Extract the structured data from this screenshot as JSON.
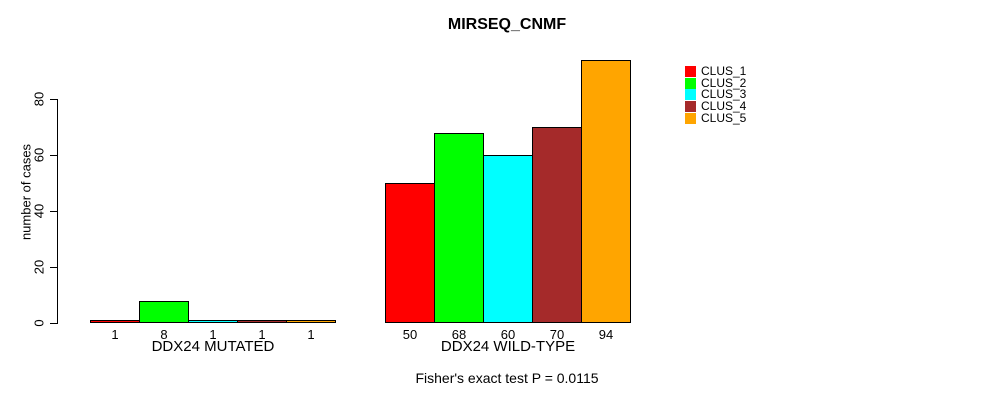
{
  "chart_data": {
    "type": "bar",
    "title": "MIRSEQ_CNMF",
    "ylabel": "number of cases",
    "xlabel": "",
    "yticks": [
      0,
      20,
      40,
      60,
      80
    ],
    "ylim": [
      0,
      94
    ],
    "grid": false,
    "legend_position": "right",
    "bar_value_labels_shown": true,
    "categories": [
      "DDX24 MUTATED",
      "DDX24 WILD-TYPE"
    ],
    "series": [
      {
        "name": "CLUS_1",
        "color": "#FF0000",
        "values": [
          1,
          50
        ]
      },
      {
        "name": "CLUS_2",
        "color": "#00FF00",
        "values": [
          8,
          68
        ]
      },
      {
        "name": "CLUS_3",
        "color": "#00FFFF",
        "values": [
          1,
          60
        ]
      },
      {
        "name": "CLUS_4",
        "color": "#A52A2A",
        "values": [
          1,
          70
        ]
      },
      {
        "name": "CLUS_5",
        "color": "#FFA500",
        "values": [
          1,
          94
        ]
      }
    ],
    "annotation": "Fisher's exact test P = 0.0115"
  }
}
